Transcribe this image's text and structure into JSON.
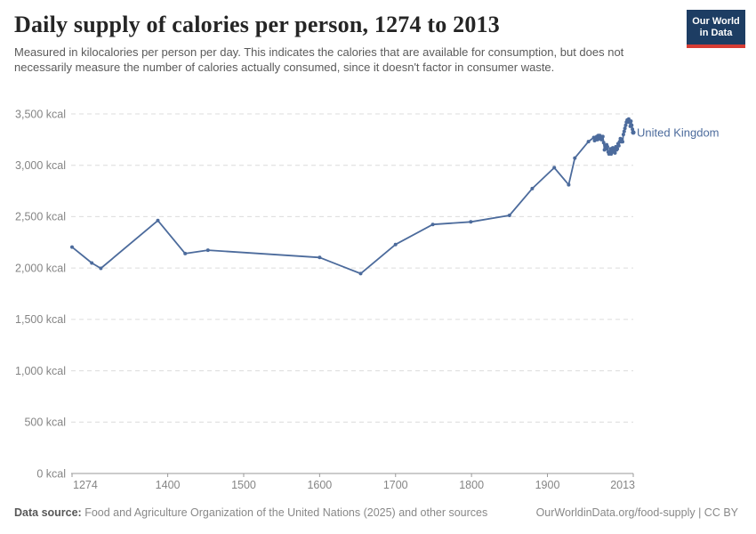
{
  "header": {
    "title": "Daily supply of calories per person, 1274 to 2013",
    "subtitle": "Measured in kilocalories per person per day. This indicates the calories that are available for consumption, but does not necessarily measure the number of calories actually consumed, since it doesn't factor in consumer waste.",
    "logo": {
      "line1": "Our World",
      "line2": "in Data",
      "bg_color": "#1d3d63",
      "accent_color": "#d73c34"
    }
  },
  "chart_data": {
    "type": "line",
    "title": "Daily supply of calories per person, 1274 to 2013",
    "xlabel": "",
    "ylabel": "",
    "unit": "kcal",
    "xlim": [
      1274,
      2013
    ],
    "ylim": [
      0,
      3500
    ],
    "grid": "horizontal-dashed",
    "legend_position": "end-of-line-label",
    "colors": {
      "line": "#4c6b9c",
      "grid": "#dcdcdc",
      "axis": "#9a9a9a",
      "tick_label": "#858585"
    },
    "yticks": [
      {
        "value": 0,
        "label": "0 kcal"
      },
      {
        "value": 500,
        "label": "500 kcal"
      },
      {
        "value": 1000,
        "label": "1,000 kcal"
      },
      {
        "value": 1500,
        "label": "1,500 kcal"
      },
      {
        "value": 2000,
        "label": "2,000 kcal"
      },
      {
        "value": 2500,
        "label": "2,500 kcal"
      },
      {
        "value": 3000,
        "label": "3,000 kcal"
      },
      {
        "value": 3500,
        "label": "3,500 kcal"
      }
    ],
    "xticks": [
      {
        "value": 1274,
        "label": "1274"
      },
      {
        "value": 1400,
        "label": "1400"
      },
      {
        "value": 1500,
        "label": "1500"
      },
      {
        "value": 1600,
        "label": "1600"
      },
      {
        "value": 1700,
        "label": "1700"
      },
      {
        "value": 1800,
        "label": "1800"
      },
      {
        "value": 1900,
        "label": "1900"
      },
      {
        "value": 2013,
        "label": "2013"
      }
    ],
    "series": [
      {
        "name": "United Kingdom",
        "color": "#4c6b9c",
        "points": [
          [
            1274,
            2204
          ],
          [
            1300,
            2049
          ],
          [
            1312,
            1997
          ],
          [
            1387,
            2462
          ],
          [
            1423,
            2141
          ],
          [
            1453,
            2174
          ],
          [
            1600,
            2103
          ],
          [
            1654,
            1946
          ],
          [
            1700,
            2229
          ],
          [
            1749,
            2424
          ],
          [
            1799,
            2449
          ],
          [
            1850,
            2512
          ],
          [
            1880,
            2773
          ],
          [
            1909,
            2977
          ],
          [
            1928,
            2810
          ],
          [
            1936,
            3070
          ],
          [
            1954,
            3231
          ],
          [
            1961,
            3270
          ],
          [
            1962,
            3240
          ],
          [
            1963,
            3270
          ],
          [
            1964,
            3250
          ],
          [
            1965,
            3280
          ],
          [
            1966,
            3250
          ],
          [
            1967,
            3290
          ],
          [
            1968,
            3260
          ],
          [
            1969,
            3290
          ],
          [
            1970,
            3280
          ],
          [
            1971,
            3250
          ],
          [
            1972,
            3270
          ],
          [
            1973,
            3280
          ],
          [
            1974,
            3220
          ],
          [
            1975,
            3150
          ],
          [
            1976,
            3190
          ],
          [
            1977,
            3160
          ],
          [
            1978,
            3200
          ],
          [
            1979,
            3180
          ],
          [
            1980,
            3130
          ],
          [
            1981,
            3110
          ],
          [
            1982,
            3130
          ],
          [
            1983,
            3160
          ],
          [
            1984,
            3110
          ],
          [
            1985,
            3150
          ],
          [
            1986,
            3170
          ],
          [
            1987,
            3130
          ],
          [
            1988,
            3160
          ],
          [
            1989,
            3120
          ],
          [
            1990,
            3180
          ],
          [
            1991,
            3150
          ],
          [
            1992,
            3160
          ],
          [
            1993,
            3210
          ],
          [
            1994,
            3190
          ],
          [
            1995,
            3230
          ],
          [
            1996,
            3260
          ],
          [
            1997,
            3230
          ],
          [
            1998,
            3250
          ],
          [
            1999,
            3230
          ],
          [
            2000,
            3300
          ],
          [
            2001,
            3330
          ],
          [
            2002,
            3360
          ],
          [
            2003,
            3390
          ],
          [
            2004,
            3420
          ],
          [
            2005,
            3440
          ],
          [
            2006,
            3420
          ],
          [
            2007,
            3450
          ],
          [
            2008,
            3430
          ],
          [
            2009,
            3380
          ],
          [
            2010,
            3430
          ],
          [
            2011,
            3390
          ],
          [
            2012,
            3350
          ],
          [
            2013,
            3320
          ]
        ]
      }
    ],
    "entity_label": "United Kingdom"
  },
  "footer": {
    "datasource_label": "Data source:",
    "datasource_text": " Food and Agriculture Organization of the United Nations (2025) and other sources",
    "link_text": "OurWorldinData.org/food-supply | CC BY"
  }
}
